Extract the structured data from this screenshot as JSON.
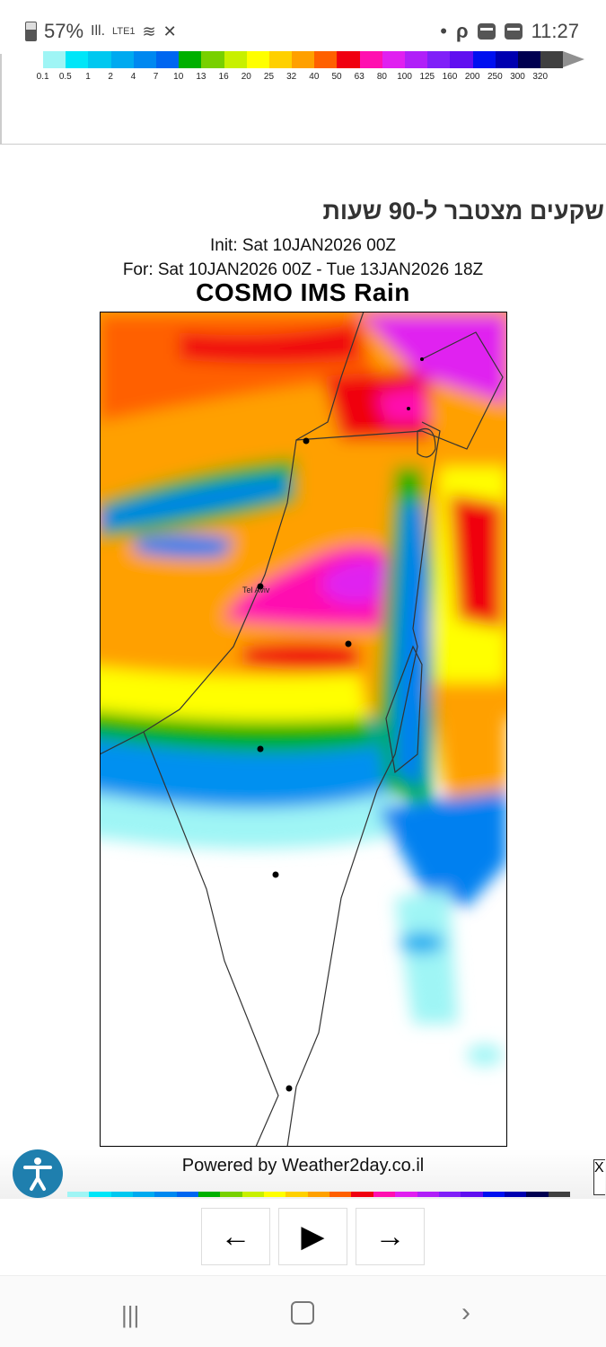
{
  "status_bar": {
    "battery": "57%",
    "network": "LTE1",
    "time": "11:27"
  },
  "legend": {
    "labels": [
      "0.1",
      "0.5",
      "1",
      "2",
      "4",
      "7",
      "10",
      "13",
      "16",
      "20",
      "25",
      "32",
      "40",
      "50",
      "63",
      "80",
      "100",
      "125",
      "160",
      "200",
      "250",
      "300",
      "320"
    ],
    "colors": [
      "#9ff5f5",
      "#00e6f8",
      "#00c8f0",
      "#00aaf0",
      "#0088f0",
      "#0066f0",
      "#00b000",
      "#78d000",
      "#c8f000",
      "#ffff00",
      "#ffd000",
      "#ffa000",
      "#ff6000",
      "#f00010",
      "#ff10b0",
      "#e020f0",
      "#b020f8",
      "#8020f8",
      "#6010f0",
      "#0010f0",
      "#0000b0",
      "#000050",
      "#404040"
    ],
    "overflow_color": "#909090"
  },
  "header": {
    "hebrew_title": "שקעים מצטבר ל-90 שעות",
    "init": "Init: Sat 10JAN2026 00Z",
    "for": "For: Sat 10JAN2026 00Z - Tue 13JAN2026 18Z",
    "model_title": "COSMO IMS Rain"
  },
  "map": {
    "city_label": "Tel Aviv"
  },
  "footer": {
    "powered_by": "Powered by Weather2day.co.il",
    "close": "X"
  },
  "controls": {
    "prev": "←",
    "play": "▶",
    "next": "→"
  }
}
